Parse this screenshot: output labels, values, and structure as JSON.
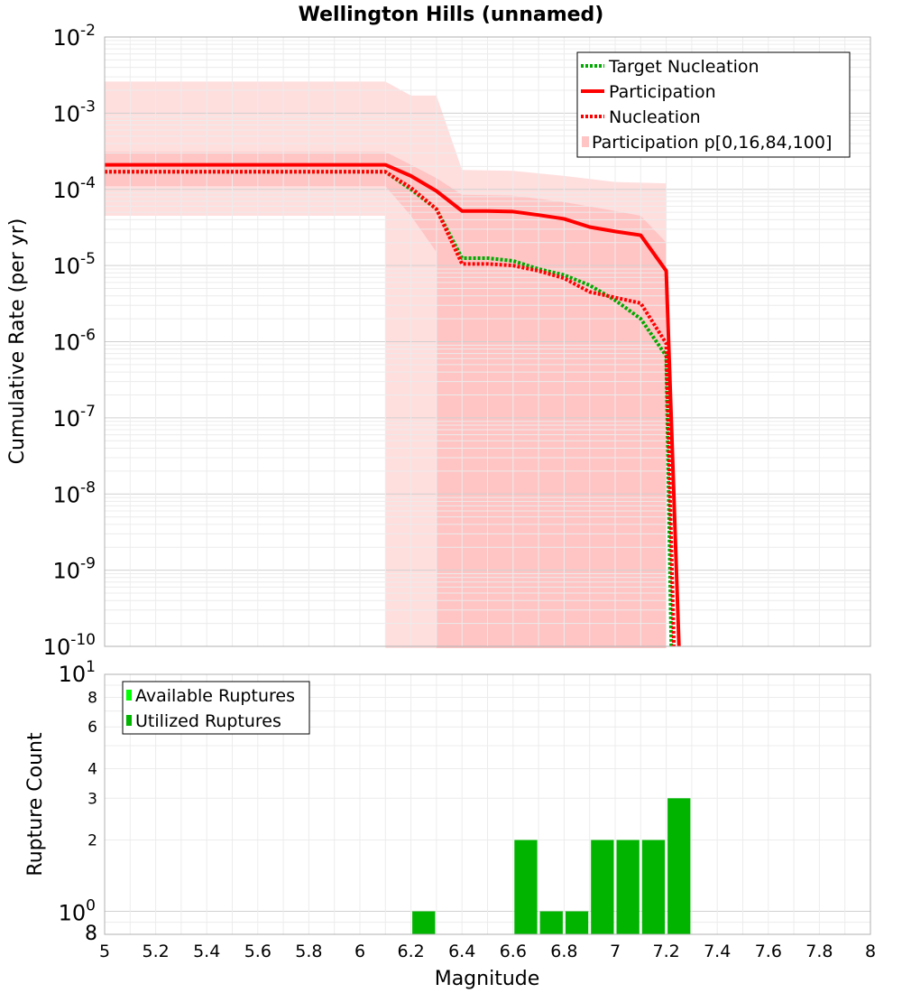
{
  "chart_data": [
    {
      "type": "line",
      "title": "Wellington Hills (unnamed)",
      "ylabel": "Cumulative Rate (per yr)",
      "xlabel": "",
      "yscale": "log",
      "xlim": [
        5,
        8
      ],
      "ylim": [
        1e-10,
        0.01
      ],
      "grid": true,
      "legend_position": "top-right",
      "x_ticks": [],
      "y_ticks": [
        {
          "value": 0.01,
          "base": "10",
          "exp": "-2"
        },
        {
          "value": 0.001,
          "base": "10",
          "exp": "-3"
        },
        {
          "value": 0.0001,
          "base": "10",
          "exp": "-4"
        },
        {
          "value": 1e-05,
          "base": "10",
          "exp": "-5"
        },
        {
          "value": 1e-06,
          "base": "10",
          "exp": "-6"
        },
        {
          "value": 1e-07,
          "base": "10",
          "exp": "-7"
        },
        {
          "value": 1e-08,
          "base": "10",
          "exp": "-8"
        },
        {
          "value": 1e-09,
          "base": "10",
          "exp": "-9"
        },
        {
          "value": 1e-10,
          "base": "10",
          "exp": "-10"
        }
      ],
      "bands": [
        {
          "name": "Participation p[0,16,84,100]",
          "color": "#ffdede",
          "lower": [
            [
              5,
              4.5e-05
            ],
            [
              6.1,
              4.5e-05
            ],
            [
              6.1,
              1e-11
            ],
            [
              6.16,
              1e-11
            ],
            [
              7.3,
              1e-11
            ]
          ],
          "upper": [
            [
              5,
              0.0026
            ],
            [
              6.1,
              0.0026
            ],
            [
              6.2,
              0.0017
            ],
            [
              6.3,
              0.0017
            ],
            [
              6.4,
              0.00018
            ],
            [
              6.6,
              0.000175
            ],
            [
              6.8,
              0.00015
            ],
            [
              7.0,
              0.000125
            ],
            [
              7.2,
              0.00012
            ],
            [
              7.2,
              1e-11
            ]
          ]
        },
        {
          "name": "",
          "color": "#ffc4c4",
          "lower": [
            [
              5,
              0.00011
            ],
            [
              6.1,
              0.00011
            ],
            [
              6.2,
              4.5e-05
            ],
            [
              6.3,
              1.5e-05
            ],
            [
              6.3,
              1e-11
            ],
            [
              7.3,
              1e-11
            ]
          ],
          "upper": [
            [
              5,
              0.00031
            ],
            [
              6.1,
              0.00031
            ],
            [
              6.2,
              0.00021
            ],
            [
              6.3,
              0.00014
            ],
            [
              6.4,
              8.5e-05
            ],
            [
              6.6,
              8.3e-05
            ],
            [
              6.8,
              6.8e-05
            ],
            [
              7.0,
              5.2e-05
            ],
            [
              7.1,
              4.5e-05
            ],
            [
              7.2,
              2e-05
            ],
            [
              7.2,
              1e-11
            ]
          ]
        }
      ],
      "series": [
        {
          "name": "Target Nucleation",
          "color": "#00aa00",
          "style": "dotted",
          "x": [
            5.0,
            6.1,
            6.2,
            6.3,
            6.4,
            6.5,
            6.6,
            6.7,
            6.8,
            6.9,
            7.0,
            7.1,
            7.2,
            7.22
          ],
          "y": [
            0.00017,
            0.00017,
            0.0001,
            5.5e-05,
            1.25e-05,
            1.25e-05,
            1.15e-05,
            9e-06,
            7.5e-06,
            5.5e-06,
            3.5e-06,
            2e-06,
            6.5e-07,
            1e-10
          ]
        },
        {
          "name": "Participation",
          "color": "#ff0000",
          "style": "solid",
          "x": [
            5.0,
            6.1,
            6.2,
            6.3,
            6.4,
            6.5,
            6.6,
            6.7,
            6.8,
            6.9,
            7.0,
            7.1,
            7.2,
            7.25
          ],
          "y": [
            0.00021,
            0.00021,
            0.00015,
            9.5e-05,
            5.2e-05,
            5.2e-05,
            5.1e-05,
            4.6e-05,
            4.1e-05,
            3.2e-05,
            2.8e-05,
            2.5e-05,
            8.5e-06,
            1e-10
          ]
        },
        {
          "name": "Nucleation",
          "color": "#ff0000",
          "style": "dotted",
          "x": [
            5.0,
            6.1,
            6.2,
            6.3,
            6.4,
            6.5,
            6.6,
            6.7,
            6.8,
            6.9,
            7.0,
            7.1,
            7.2,
            7.23
          ],
          "y": [
            0.00017,
            0.00017,
            0.000105,
            5.5e-05,
            1.05e-05,
            1.05e-05,
            1e-05,
            8.5e-06,
            6.8e-06,
            4.5e-06,
            3.8e-06,
            3.2e-06,
            9.5e-07,
            1e-10
          ]
        }
      ],
      "legend": [
        {
          "label": "Target Nucleation",
          "color": "#00aa00",
          "style": "dotted"
        },
        {
          "label": "Participation",
          "color": "#ff0000",
          "style": "solid"
        },
        {
          "label": "Nucleation",
          "color": "#ff0000",
          "style": "dotted"
        },
        {
          "label": "Participation p[0,16,84,100]",
          "color": "#ffc4c4",
          "style": "band"
        }
      ]
    },
    {
      "type": "bar",
      "title": "",
      "xlabel": "Magnitude",
      "ylabel": "Rupture Count",
      "yscale": "log",
      "xlim": [
        5,
        8
      ],
      "ylim": [
        0.8,
        10
      ],
      "grid": true,
      "legend_position": "top-left",
      "bar_width": 0.1,
      "x_ticks": [
        "5",
        "5.2",
        "5.4",
        "5.6",
        "5.8",
        "6",
        "6.2",
        "6.4",
        "6.6",
        "6.8",
        "7",
        "7.2",
        "7.4",
        "7.6",
        "7.8",
        "8"
      ],
      "y_ticks": [
        {
          "value": 10,
          "base": "10",
          "exp": "1"
        },
        {
          "value": 8,
          "label": "8"
        },
        {
          "value": 6,
          "label": "6"
        },
        {
          "value": 4,
          "label": "4"
        },
        {
          "value": 3,
          "label": "3"
        },
        {
          "value": 2,
          "label": "2"
        },
        {
          "value": 1,
          "base": "10",
          "exp": "0"
        },
        {
          "value": 0.8,
          "label": "8"
        }
      ],
      "series": [
        {
          "name": "Available Ruptures",
          "color": "#00ff00",
          "x": [
            6.25,
            6.65,
            6.75,
            6.85,
            6.95,
            7.05,
            7.15,
            7.25
          ],
          "values": [
            1,
            2,
            1,
            1,
            2,
            2,
            2,
            3
          ]
        },
        {
          "name": "Utilized Ruptures",
          "color": "#00b400",
          "x": [
            6.25,
            6.65,
            6.75,
            6.85,
            6.95,
            7.05,
            7.15,
            7.25
          ],
          "values": [
            1,
            2,
            1,
            1,
            2,
            2,
            2,
            3
          ]
        }
      ],
      "legend": [
        {
          "label": "Available Ruptures",
          "color": "#00ff00"
        },
        {
          "label": "Utilized Ruptures",
          "color": "#00b400"
        }
      ]
    }
  ]
}
